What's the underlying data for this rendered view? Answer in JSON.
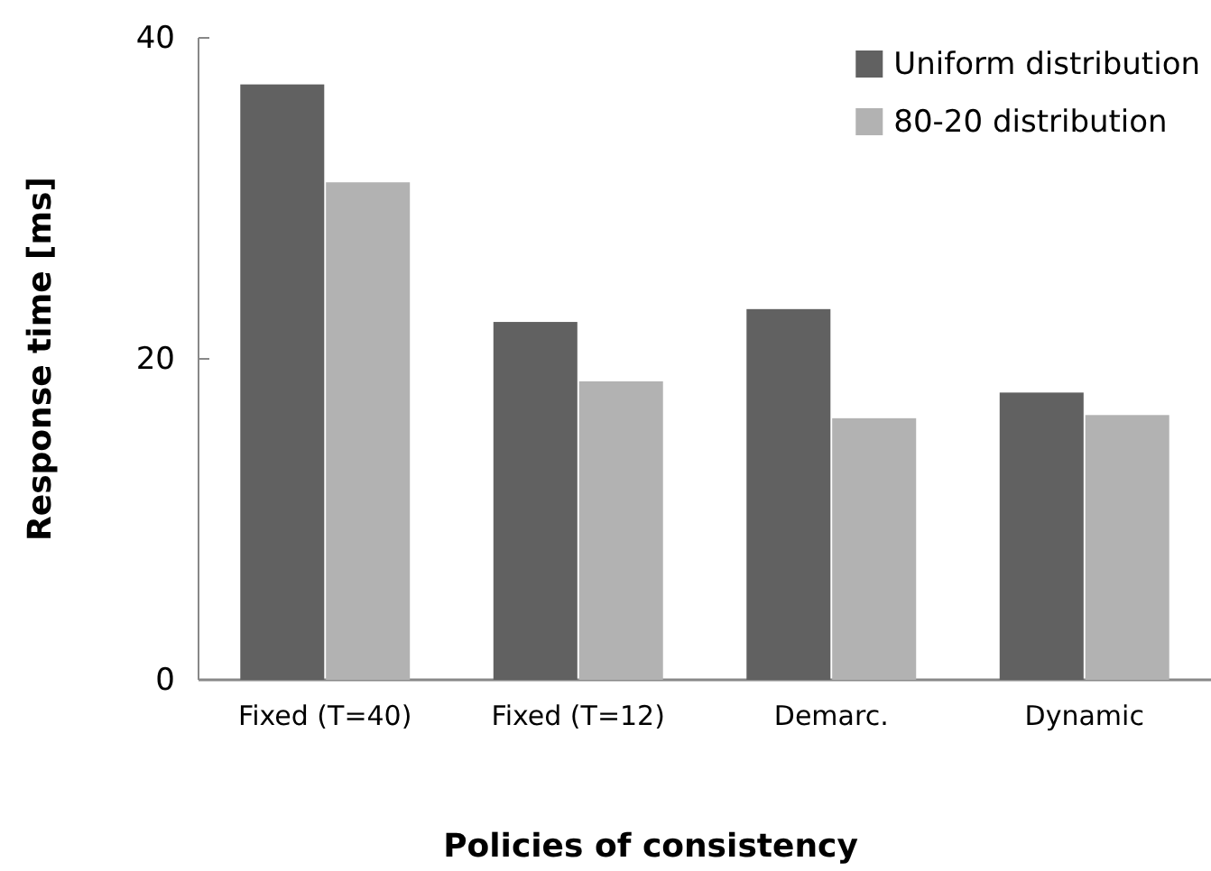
{
  "chart_data": {
    "type": "bar",
    "xlabel": "Policies of consistency",
    "ylabel": "Response time [ms]",
    "categories": [
      "Fixed (T=40)",
      "Fixed (T=12)",
      "Demarc.",
      "Dynamic"
    ],
    "series": [
      {
        "name": "Uniform distribution",
        "color": "#616161",
        "values": [
          37.1,
          22.3,
          23.1,
          17.9
        ]
      },
      {
        "name": "80-20 distribution",
        "color": "#b2b2b2",
        "values": [
          31.0,
          18.6,
          16.3,
          16.5
        ]
      }
    ],
    "ylim": [
      0,
      40
    ],
    "yticks": [
      0,
      20,
      40
    ],
    "grid": false,
    "legend": "top right"
  }
}
